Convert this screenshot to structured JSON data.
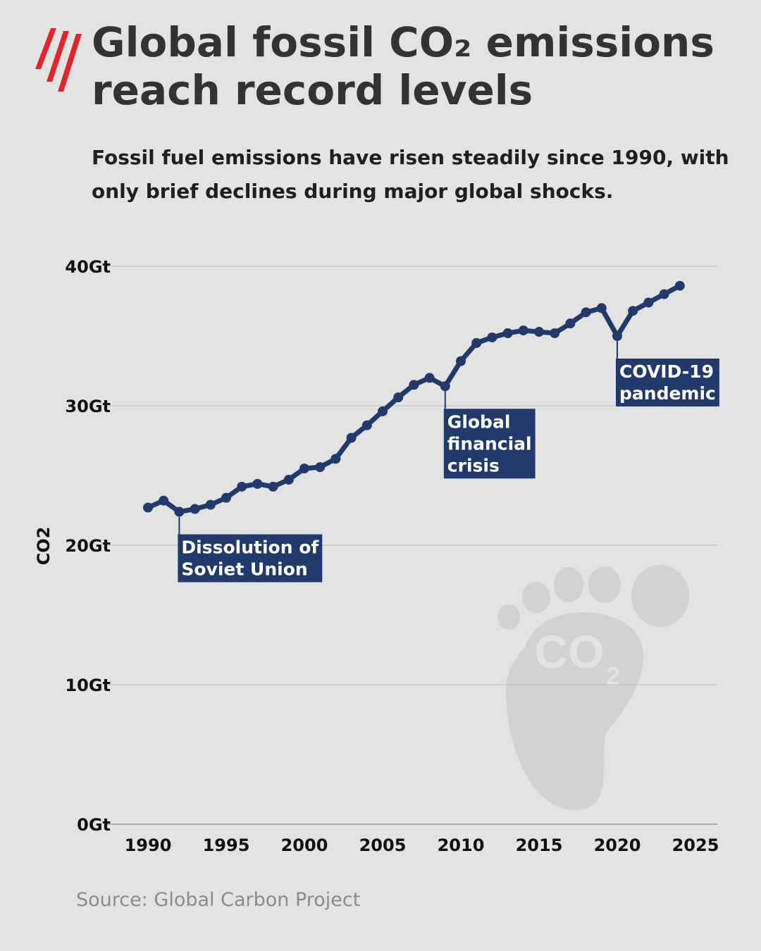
{
  "title": "Global fossil CO₂ emissions reach record levels",
  "subtitle": "Fossil fuel emissions have risen steadily since 1990, with only brief declines during major global shocks.",
  "source": "Source: Global Carbon Project",
  "colors": {
    "background": "#e3e3e3",
    "line": "#223a6b",
    "logo": "#e5232b",
    "annotation_bg": "#223a6b",
    "grid": "#c4c4c4",
    "watermark": "#d2d2d2"
  },
  "watermark_icon": "co2-footprint-icon",
  "watermark_text": "CO2",
  "chart_data": {
    "type": "line",
    "title": "",
    "xlabel": "",
    "ylabel": "CO2",
    "xlim": [
      1990,
      2025
    ],
    "ylim": [
      0,
      40
    ],
    "x_ticks": [
      1990,
      1995,
      2000,
      2005,
      2010,
      2015,
      2020,
      2025
    ],
    "y_ticks": [
      0,
      10,
      20,
      30,
      40
    ],
    "y_tick_labels": [
      "0Gt",
      "10Gt",
      "20Gt",
      "30Gt",
      "40Gt"
    ],
    "grid": "horizontal",
    "series": [
      {
        "x": [
          1990,
          1991,
          1992,
          1993,
          1994,
          1995,
          1996,
          1997,
          1998,
          1999,
          2000,
          2001,
          2002,
          2003,
          2004,
          2005,
          2006,
          2007,
          2008,
          2009,
          2010,
          2011,
          2012,
          2013,
          2014,
          2015,
          2016,
          2017,
          2018,
          2019,
          2020,
          2021,
          2022,
          2023,
          2024
        ],
        "values": [
          22.7,
          23.2,
          22.4,
          22.6,
          22.9,
          23.4,
          24.2,
          24.4,
          24.2,
          24.7,
          25.5,
          25.6,
          26.2,
          27.7,
          28.6,
          29.6,
          30.6,
          31.5,
          32.0,
          31.4,
          33.2,
          34.5,
          34.9,
          35.2,
          35.4,
          35.3,
          35.2,
          35.9,
          36.7,
          37.0,
          35.0,
          36.8,
          37.4,
          38.0,
          38.6
        ]
      }
    ],
    "annotations": [
      {
        "x": 1992,
        "y": 22.4,
        "lines": [
          "Dissolution of",
          "Soviet Union"
        ]
      },
      {
        "x": 2009,
        "y": 31.4,
        "lines": [
          "Global",
          "financial",
          "crisis"
        ]
      },
      {
        "x": 2020,
        "y": 35.0,
        "lines": [
          "COVID-19",
          "pandemic"
        ]
      }
    ]
  }
}
